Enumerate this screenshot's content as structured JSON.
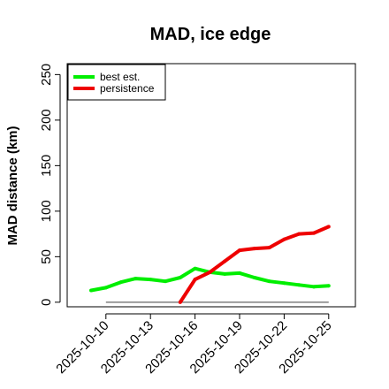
{
  "chart_data": {
    "type": "line",
    "title": "MAD, ice edge",
    "xlabel": "",
    "ylabel": "MAD distance (km)",
    "x": [
      "2025-10-10",
      "2025-10-11",
      "2025-10-12",
      "2025-10-13",
      "2025-10-14",
      "2025-10-15",
      "2025-10-16",
      "2025-10-17",
      "2025-10-18",
      "2025-10-19",
      "2025-10-20",
      "2025-10-21",
      "2025-10-22",
      "2025-10-23",
      "2025-10-24",
      "2025-10-25"
    ],
    "x_start": "2025-10-09",
    "x_tick_labels": [
      "2025-10-10",
      "2025-10-13",
      "2025-10-16",
      "2025-10-19",
      "2025-10-22",
      "2025-10-25"
    ],
    "ylim": [
      -5,
      262
    ],
    "y_ticks": [
      0,
      50,
      100,
      150,
      200,
      250
    ],
    "legend_position": "top-left",
    "reference_line": {
      "y": 0,
      "color": "#666666"
    },
    "series": [
      {
        "name": "best est.",
        "color": "#00ee00",
        "x": [
          "2025-10-09",
          "2025-10-10",
          "2025-10-11",
          "2025-10-12",
          "2025-10-13",
          "2025-10-14",
          "2025-10-15",
          "2025-10-16",
          "2025-10-17",
          "2025-10-18",
          "2025-10-19",
          "2025-10-20",
          "2025-10-21",
          "2025-10-22",
          "2025-10-23",
          "2025-10-24",
          "2025-10-25"
        ],
        "values": [
          13,
          16,
          22,
          26,
          25,
          23,
          27,
          37,
          33,
          31,
          32,
          27,
          23,
          21,
          19,
          17,
          18
        ]
      },
      {
        "name": "persistence",
        "color": "#ee0000",
        "x": [
          "2025-10-15",
          "2025-10-16",
          "2025-10-17",
          "2025-10-18",
          "2025-10-19",
          "2025-10-20",
          "2025-10-21",
          "2025-10-22",
          "2025-10-23",
          "2025-10-24",
          "2025-10-25"
        ],
        "values": [
          0,
          25,
          33,
          45,
          57,
          59,
          60,
          69,
          75,
          76,
          83
        ]
      }
    ]
  }
}
